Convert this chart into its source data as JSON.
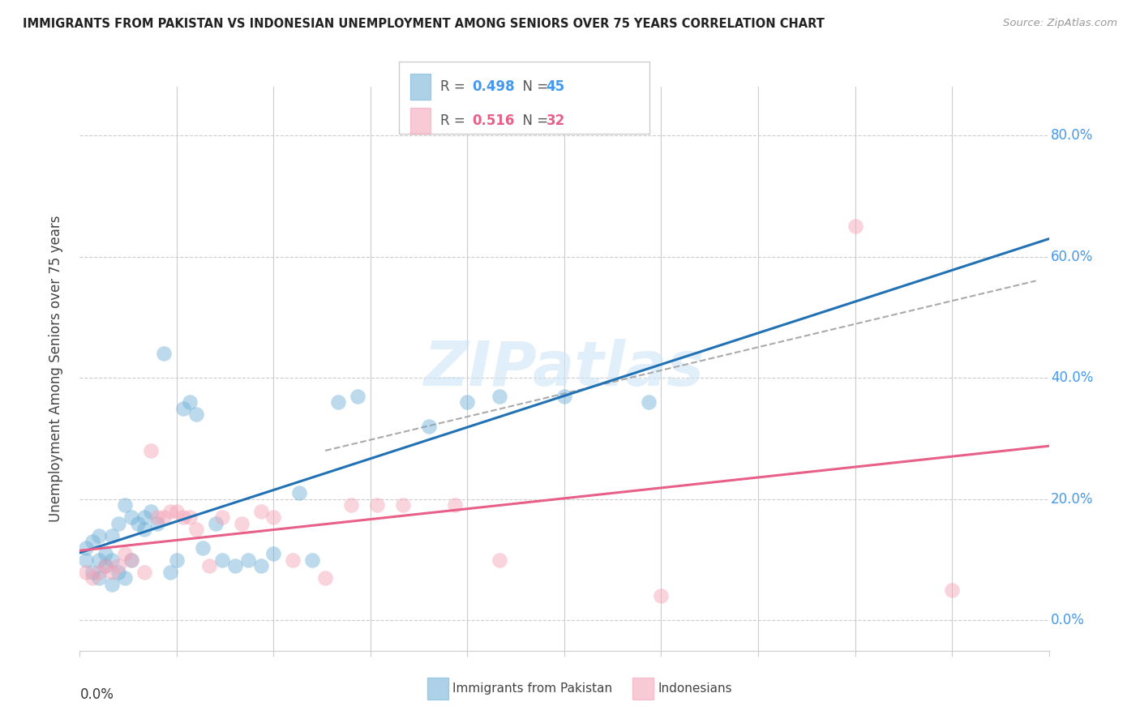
{
  "title": "IMMIGRANTS FROM PAKISTAN VS INDONESIAN UNEMPLOYMENT AMONG SENIORS OVER 75 YEARS CORRELATION CHART",
  "source": "Source: ZipAtlas.com",
  "ylabel": "Unemployment Among Seniors over 75 years",
  "ytick_labels": [
    "0.0%",
    "20.0%",
    "40.0%",
    "60.0%",
    "80.0%"
  ],
  "ytick_vals": [
    0.0,
    0.2,
    0.4,
    0.6,
    0.8
  ],
  "xlim": [
    0.0,
    0.15
  ],
  "ylim": [
    -0.05,
    0.88
  ],
  "legend_r1": "0.498",
  "legend_n1": "45",
  "legend_r2": "0.516",
  "legend_n2": "32",
  "color_blue": "#6baed6",
  "color_pink": "#f4a0b5",
  "color_blue_line": "#2171b5",
  "color_pink_line": "#e8608a",
  "color_dashed": "#aaaaaa",
  "watermark": "ZIPatlas",
  "pakistan_x": [
    0.001,
    0.001,
    0.002,
    0.002,
    0.003,
    0.003,
    0.003,
    0.004,
    0.004,
    0.005,
    0.005,
    0.005,
    0.006,
    0.006,
    0.007,
    0.007,
    0.008,
    0.008,
    0.009,
    0.01,
    0.01,
    0.011,
    0.012,
    0.013,
    0.014,
    0.015,
    0.016,
    0.017,
    0.018,
    0.019,
    0.021,
    0.022,
    0.024,
    0.026,
    0.028,
    0.03,
    0.034,
    0.036,
    0.04,
    0.043,
    0.054,
    0.06,
    0.065,
    0.075,
    0.088
  ],
  "pakistan_y": [
    0.1,
    0.12,
    0.08,
    0.13,
    0.07,
    0.1,
    0.14,
    0.09,
    0.11,
    0.06,
    0.1,
    0.14,
    0.08,
    0.16,
    0.19,
    0.07,
    0.17,
    0.1,
    0.16,
    0.15,
    0.17,
    0.18,
    0.16,
    0.44,
    0.08,
    0.1,
    0.35,
    0.36,
    0.34,
    0.12,
    0.16,
    0.1,
    0.09,
    0.1,
    0.09,
    0.11,
    0.21,
    0.1,
    0.36,
    0.37,
    0.32,
    0.36,
    0.37,
    0.37,
    0.36
  ],
  "indonesian_x": [
    0.001,
    0.002,
    0.003,
    0.004,
    0.005,
    0.006,
    0.007,
    0.008,
    0.01,
    0.011,
    0.012,
    0.013,
    0.014,
    0.015,
    0.016,
    0.017,
    0.018,
    0.02,
    0.022,
    0.025,
    0.028,
    0.03,
    0.033,
    0.038,
    0.042,
    0.046,
    0.05,
    0.058,
    0.065,
    0.09,
    0.12,
    0.135
  ],
  "indonesian_y": [
    0.08,
    0.07,
    0.08,
    0.09,
    0.08,
    0.09,
    0.11,
    0.1,
    0.08,
    0.28,
    0.17,
    0.17,
    0.18,
    0.18,
    0.17,
    0.17,
    0.15,
    0.09,
    0.17,
    0.16,
    0.18,
    0.17,
    0.1,
    0.07,
    0.19,
    0.19,
    0.19,
    0.19,
    0.1,
    0.04,
    0.65,
    0.05
  ]
}
